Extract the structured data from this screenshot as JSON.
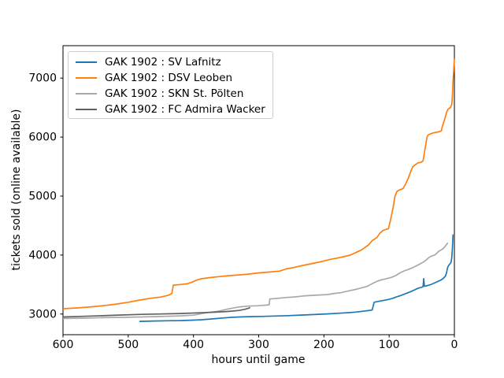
{
  "chart_data": {
    "type": "line",
    "title": "",
    "xlabel": "hours until game",
    "ylabel": "tickets sold (online available)",
    "grid": false,
    "legend": {
      "position": "upper left",
      "border_color": "#cccccc"
    },
    "x_axis": {
      "ticks": [
        600,
        500,
        400,
        300,
        200,
        100,
        0
      ],
      "range": [
        600,
        0
      ],
      "inverted": true
    },
    "y_axis": {
      "ticks": [
        3000,
        4000,
        5000,
        6000,
        7000
      ],
      "range": [
        2650,
        7550
      ]
    },
    "series": [
      {
        "name": "GAK 1902 : SV Lafnitz",
        "color": "#1f77b4",
        "points": [
          [
            483,
            2875
          ],
          [
            460,
            2882
          ],
          [
            440,
            2886
          ],
          [
            420,
            2889
          ],
          [
            400,
            2897
          ],
          [
            385,
            2905
          ],
          [
            370,
            2918
          ],
          [
            355,
            2933
          ],
          [
            340,
            2945
          ],
          [
            325,
            2952
          ],
          [
            310,
            2957
          ],
          [
            295,
            2960
          ],
          [
            275,
            2966
          ],
          [
            255,
            2973
          ],
          [
            235,
            2982
          ],
          [
            215,
            2992
          ],
          [
            195,
            3002
          ],
          [
            175,
            3015
          ],
          [
            160,
            3025
          ],
          [
            150,
            3035
          ],
          [
            140,
            3048
          ],
          [
            132,
            3058
          ],
          [
            126,
            3068
          ],
          [
            123,
            3200
          ],
          [
            118,
            3212
          ],
          [
            110,
            3228
          ],
          [
            102,
            3245
          ],
          [
            95,
            3265
          ],
          [
            89,
            3290
          ],
          [
            82,
            3315
          ],
          [
            75,
            3345
          ],
          [
            68,
            3375
          ],
          [
            62,
            3405
          ],
          [
            56,
            3435
          ],
          [
            50,
            3455
          ],
          [
            48,
            3465
          ],
          [
            47,
            3600
          ],
          [
            46,
            3470
          ],
          [
            43,
            3478
          ],
          [
            39,
            3490
          ],
          [
            35,
            3505
          ],
          [
            31,
            3525
          ],
          [
            27,
            3545
          ],
          [
            23,
            3565
          ],
          [
            20,
            3580
          ],
          [
            17,
            3605
          ],
          [
            14,
            3640
          ],
          [
            12,
            3700
          ],
          [
            11,
            3760
          ],
          [
            10,
            3800
          ],
          [
            8,
            3835
          ],
          [
            6,
            3860
          ],
          [
            5,
            3885
          ],
          [
            4,
            3960
          ],
          [
            3,
            4120
          ],
          [
            2,
            4350
          ]
        ]
      },
      {
        "name": "GAK 1902 : DSV Leoben",
        "color": "#ff7f0e",
        "points": [
          [
            600,
            3090
          ],
          [
            580,
            3102
          ],
          [
            560,
            3118
          ],
          [
            540,
            3140
          ],
          [
            520,
            3165
          ],
          [
            500,
            3200
          ],
          [
            482,
            3238
          ],
          [
            465,
            3268
          ],
          [
            450,
            3288
          ],
          [
            438,
            3320
          ],
          [
            433,
            3350
          ],
          [
            431,
            3490
          ],
          [
            420,
            3500
          ],
          [
            410,
            3512
          ],
          [
            402,
            3540
          ],
          [
            396,
            3572
          ],
          [
            388,
            3598
          ],
          [
            375,
            3618
          ],
          [
            360,
            3635
          ],
          [
            345,
            3652
          ],
          [
            330,
            3663
          ],
          [
            315,
            3678
          ],
          [
            300,
            3698
          ],
          [
            285,
            3712
          ],
          [
            268,
            3728
          ],
          [
            258,
            3765
          ],
          [
            247,
            3788
          ],
          [
            232,
            3825
          ],
          [
            217,
            3858
          ],
          [
            202,
            3895
          ],
          [
            190,
            3928
          ],
          [
            180,
            3948
          ],
          [
            170,
            3972
          ],
          [
            160,
            3998
          ],
          [
            150,
            4048
          ],
          [
            142,
            4090
          ],
          [
            132,
            4170
          ],
          [
            126,
            4245
          ],
          [
            119,
            4295
          ],
          [
            114,
            4375
          ],
          [
            109,
            4420
          ],
          [
            101,
            4448
          ],
          [
            98,
            4590
          ],
          [
            94,
            4800
          ],
          [
            91,
            5000
          ],
          [
            88,
            5080
          ],
          [
            84,
            5105
          ],
          [
            79,
            5125
          ],
          [
            75,
            5200
          ],
          [
            71,
            5295
          ],
          [
            67,
            5415
          ],
          [
            64,
            5495
          ],
          [
            60,
            5530
          ],
          [
            56,
            5562
          ],
          [
            51,
            5572
          ],
          [
            48,
            5600
          ],
          [
            45,
            5795
          ],
          [
            42,
            6000
          ],
          [
            40,
            6040
          ],
          [
            35,
            6062
          ],
          [
            29,
            6080
          ],
          [
            24,
            6090
          ],
          [
            20,
            6105
          ],
          [
            18,
            6200
          ],
          [
            15,
            6300
          ],
          [
            12,
            6420
          ],
          [
            10,
            6468
          ],
          [
            8,
            6488
          ],
          [
            6,
            6502
          ],
          [
            4,
            6552
          ],
          [
            3,
            6700
          ],
          [
            2,
            6950
          ],
          [
            1,
            7150
          ],
          [
            0,
            7330
          ]
        ]
      },
      {
        "name": "GAK 1902 : SKN St. Pölten",
        "color": "#a9a9a9",
        "points": [
          [
            600,
            2925
          ],
          [
            570,
            2931
          ],
          [
            540,
            2938
          ],
          [
            510,
            2944
          ],
          [
            480,
            2951
          ],
          [
            450,
            2959
          ],
          [
            420,
            2969
          ],
          [
            400,
            2981
          ],
          [
            382,
            3018
          ],
          [
            362,
            3048
          ],
          [
            346,
            3088
          ],
          [
            331,
            3118
          ],
          [
            316,
            3134
          ],
          [
            300,
            3141
          ],
          [
            288,
            3152
          ],
          [
            284,
            3158
          ],
          [
            283,
            3255
          ],
          [
            272,
            3265
          ],
          [
            258,
            3280
          ],
          [
            244,
            3291
          ],
          [
            229,
            3309
          ],
          [
            214,
            3319
          ],
          [
            204,
            3324
          ],
          [
            194,
            3331
          ],
          [
            184,
            3349
          ],
          [
            174,
            3361
          ],
          [
            164,
            3389
          ],
          [
            154,
            3411
          ],
          [
            144,
            3439
          ],
          [
            134,
            3469
          ],
          [
            128,
            3505
          ],
          [
            120,
            3548
          ],
          [
            112,
            3579
          ],
          [
            104,
            3601
          ],
          [
            97,
            3621
          ],
          [
            90,
            3651
          ],
          [
            83,
            3699
          ],
          [
            77,
            3731
          ],
          [
            70,
            3759
          ],
          [
            65,
            3781
          ],
          [
            60,
            3809
          ],
          [
            54,
            3841
          ],
          [
            48,
            3879
          ],
          [
            45,
            3901
          ],
          [
            42,
            3929
          ],
          [
            39,
            3959
          ],
          [
            35,
            3984
          ],
          [
            30,
            4001
          ],
          [
            27,
            4029
          ],
          [
            24,
            4064
          ],
          [
            20,
            4089
          ],
          [
            17,
            4111
          ],
          [
            14,
            4149
          ],
          [
            12,
            4180
          ],
          [
            10,
            4210
          ]
        ]
      },
      {
        "name": "GAK 1902 : FC Admira Wacker",
        "color": "#606060",
        "points": [
          [
            600,
            2950
          ],
          [
            570,
            2961
          ],
          [
            540,
            2972
          ],
          [
            510,
            2984
          ],
          [
            480,
            2994
          ],
          [
            450,
            3001
          ],
          [
            420,
            3009
          ],
          [
            390,
            3021
          ],
          [
            370,
            3031
          ],
          [
            350,
            3043
          ],
          [
            340,
            3051
          ],
          [
            330,
            3061
          ],
          [
            322,
            3078
          ],
          [
            316,
            3096
          ],
          [
            313,
            3112
          ]
        ]
      }
    ]
  }
}
